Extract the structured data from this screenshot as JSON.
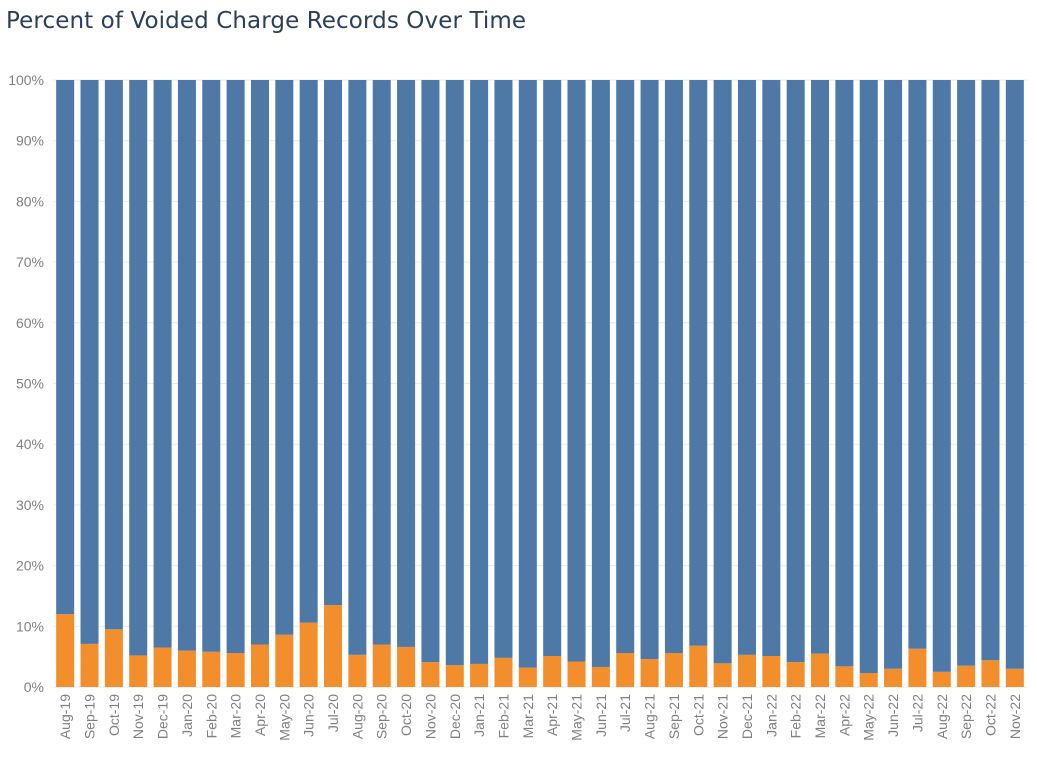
{
  "title": "Percent of Voided Charge Records Over Time",
  "colors": {
    "voided": "#f28e2b",
    "not_voided": "#4e79a7",
    "gridline": "#e9e9e9",
    "tick_text": "#808080"
  },
  "chart_data": {
    "type": "bar",
    "stacked": true,
    "title": "Percent of Voided Charge Records Over Time",
    "xlabel": "",
    "ylabel": "",
    "ylim": [
      0,
      100
    ],
    "yticks": [
      "0%",
      "10%",
      "20%",
      "30%",
      "40%",
      "50%",
      "60%",
      "70%",
      "80%",
      "90%",
      "100%"
    ],
    "grid": true,
    "categories": [
      "Aug-19",
      "Sep-19",
      "Oct-19",
      "Nov-19",
      "Dec-19",
      "Jan-20",
      "Feb-20",
      "Mar-20",
      "Apr-20",
      "May-20",
      "Jun-20",
      "Jul-20",
      "Aug-20",
      "Sep-20",
      "Oct-20",
      "Nov-20",
      "Dec-20",
      "Jan-21",
      "Feb-21",
      "Mar-21",
      "Apr-21",
      "May-21",
      "Jun-21",
      "Jul-21",
      "Aug-21",
      "Sep-21",
      "Oct-21",
      "Nov-21",
      "Dec-21",
      "Jan-22",
      "Feb-22",
      "Mar-22",
      "Apr-22",
      "May-22",
      "Jun-22",
      "Jul-22",
      "Aug-22",
      "Sep-22",
      "Oct-22",
      "Nov-22"
    ],
    "series": [
      {
        "values": [
          12.0,
          7.1,
          9.5,
          5.2,
          6.5,
          6.0,
          5.8,
          5.6,
          7.0,
          8.6,
          10.6,
          13.5,
          5.3,
          7.0,
          6.6,
          4.1,
          3.6,
          3.8,
          4.8,
          3.2,
          5.1,
          4.2,
          3.3,
          5.6,
          4.6,
          5.6,
          6.8,
          3.9,
          5.3,
          5.1,
          4.1,
          5.5,
          3.4,
          2.3,
          3.0,
          6.3,
          2.5,
          3.5,
          4.4,
          3.0
        ]
      },
      {
        "values": [
          88.0,
          92.9,
          90.5,
          94.8,
          93.5,
          94.0,
          94.2,
          94.4,
          93.0,
          91.4,
          89.4,
          86.5,
          94.7,
          93.0,
          93.4,
          95.9,
          96.4,
          96.2,
          95.2,
          96.8,
          94.9,
          95.8,
          96.7,
          94.4,
          95.4,
          94.4,
          93.2,
          96.1,
          94.7,
          94.9,
          95.9,
          94.5,
          96.6,
          97.7,
          97.0,
          93.7,
          97.5,
          96.5,
          95.6,
          97.0
        ]
      }
    ]
  }
}
